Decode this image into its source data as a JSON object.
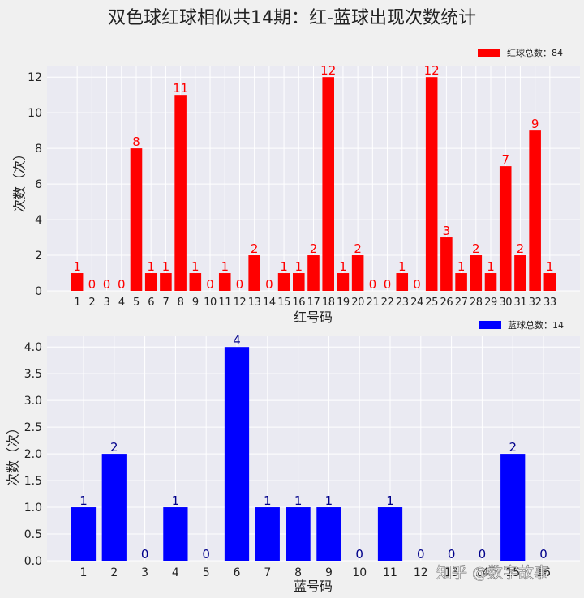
{
  "figure_title": "双色球红球相似共14期：红-蓝球出现次数统计",
  "watermark": "知乎 @数字故事",
  "colors": {
    "page_bg": "#f0f0f0",
    "plot_bg": "#eaeaf2",
    "grid": "#ffffff",
    "text": "#222222"
  },
  "chart_data": [
    {
      "type": "bar",
      "xlabel": "红号码",
      "ylabel": "次数（次）",
      "categories": [
        "1",
        "2",
        "3",
        "4",
        "5",
        "6",
        "7",
        "8",
        "9",
        "10",
        "11",
        "12",
        "13",
        "14",
        "15",
        "16",
        "17",
        "18",
        "19",
        "20",
        "21",
        "22",
        "23",
        "24",
        "25",
        "26",
        "27",
        "28",
        "29",
        "30",
        "31",
        "32",
        "33"
      ],
      "series": [
        {
          "name": "红球总数：84",
          "color": "#ff0000",
          "values": [
            1,
            0,
            0,
            0,
            8,
            1,
            1,
            11,
            1,
            0,
            1,
            0,
            2,
            0,
            1,
            1,
            2,
            12,
            1,
            2,
            0,
            0,
            1,
            0,
            12,
            3,
            1,
            2,
            1,
            7,
            2,
            9,
            1
          ]
        }
      ],
      "value_label_color": "#ff0000",
      "xlim": [
        -1.04,
        35.04
      ],
      "ylim": [
        0,
        12.6
      ],
      "yticks": [
        0,
        2,
        4,
        6,
        8,
        10,
        12
      ],
      "ytick_labels": [
        "0",
        "2",
        "4",
        "6",
        "8",
        "10",
        "12"
      ],
      "grid": true,
      "legend_placement": "top-right"
    },
    {
      "type": "bar",
      "xlabel": "蓝号码",
      "ylabel": "次数（次）",
      "categories": [
        "1",
        "2",
        "3",
        "4",
        "5",
        "6",
        "7",
        "8",
        "9",
        "10",
        "11",
        "12",
        "13",
        "14",
        "15",
        "16"
      ],
      "series": [
        {
          "name": "蓝球总数：14",
          "color": "#0000ff",
          "values": [
            1,
            2,
            0,
            1,
            0,
            4,
            1,
            1,
            1,
            0,
            1,
            0,
            0,
            0,
            2,
            0
          ]
        }
      ],
      "value_label_color": "#00008b",
      "xlim": [
        -0.19,
        17.19
      ],
      "ylim": [
        0,
        4.2
      ],
      "yticks": [
        0,
        0.5,
        1,
        1.5,
        2,
        2.5,
        3,
        3.5,
        4
      ],
      "ytick_labels": [
        "0.0",
        "0.5",
        "1.0",
        "1.5",
        "2.0",
        "2.5",
        "3.0",
        "3.5",
        "4.0"
      ],
      "grid": true,
      "legend_placement": "top-right"
    }
  ]
}
